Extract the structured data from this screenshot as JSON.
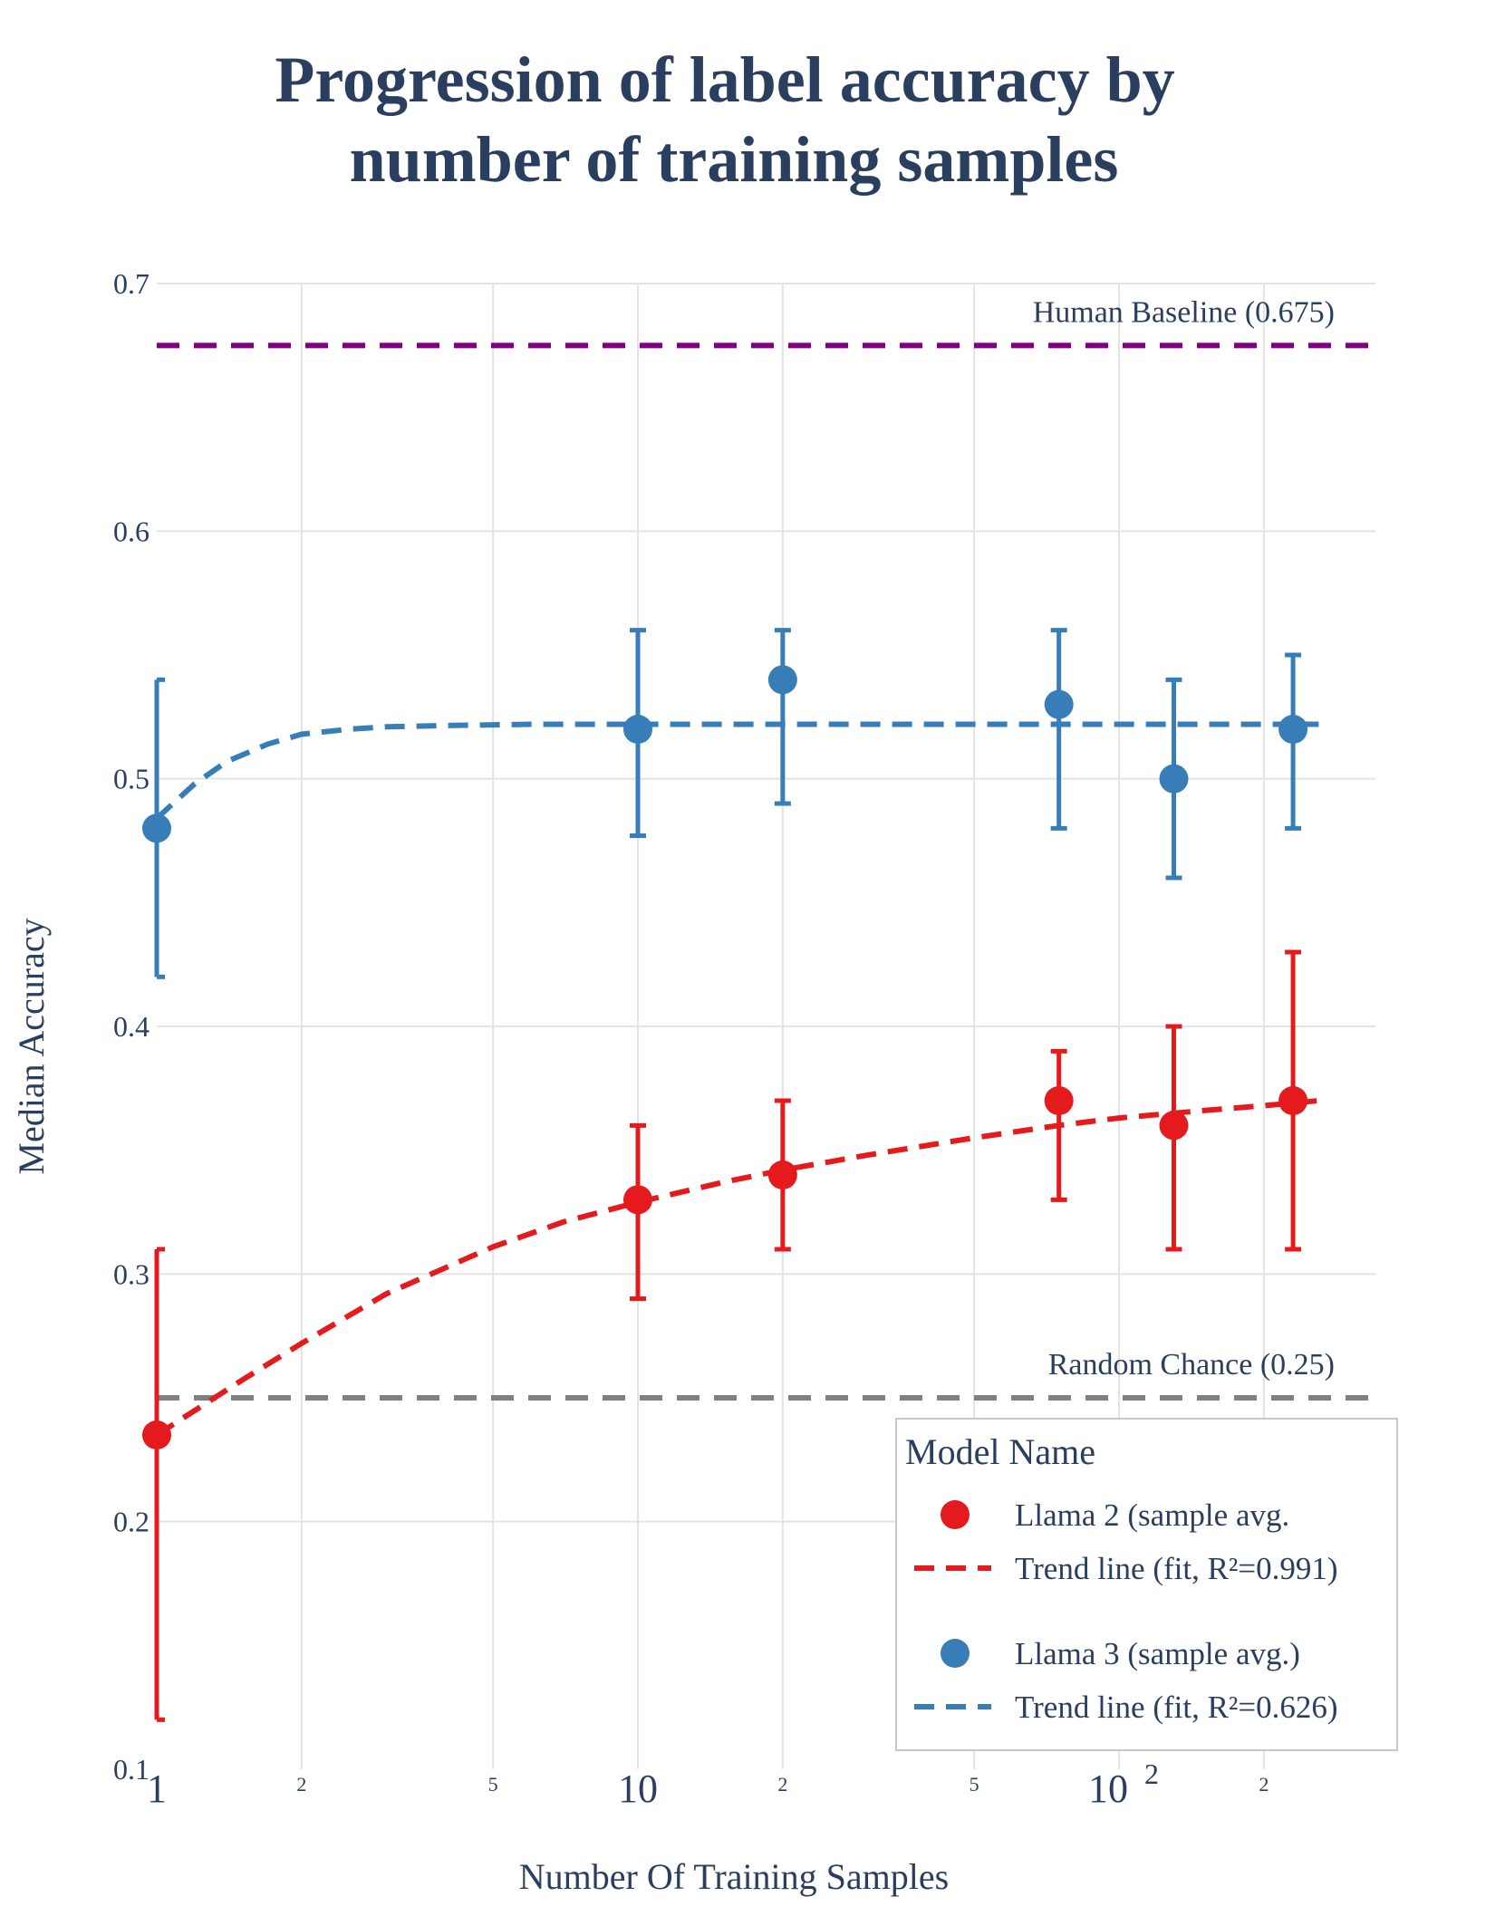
{
  "chart_data": {
    "type": "scatter",
    "title_line1": "Progression of label accuracy by",
    "title_line2": "number of training samples",
    "xlabel": "Number Of Training Samples",
    "ylabel": "Median Accuracy",
    "x_scale": "log",
    "xlim": [
      1,
      350
    ],
    "ylim": [
      0.1,
      0.7
    ],
    "y_ticks": [
      {
        "value": 0.1,
        "label": "0.1"
      },
      {
        "value": 0.2,
        "label": "0.2"
      },
      {
        "value": 0.3,
        "label": "0.3"
      },
      {
        "value": 0.4,
        "label": "0.4"
      },
      {
        "value": 0.5,
        "label": "0.5"
      },
      {
        "value": 0.6,
        "label": "0.6"
      },
      {
        "value": 0.7,
        "label": "0.7"
      }
    ],
    "x_major_ticks": [
      {
        "value": 1,
        "label": "1"
      },
      {
        "value": 10,
        "label": "10"
      },
      {
        "value": 100,
        "label": "10",
        "sup": "2"
      }
    ],
    "x_minor_ticks": [
      {
        "value": 2,
        "label": "2"
      },
      {
        "value": 5,
        "label": "5"
      },
      {
        "value": 20,
        "label": "2"
      },
      {
        "value": 50,
        "label": "5"
      },
      {
        "value": 200,
        "label": "2"
      }
    ],
    "reference_lines": [
      {
        "name": "human-baseline",
        "y": 0.675,
        "label": "Human Baseline (0.675)",
        "color": "#800080"
      },
      {
        "name": "random-chance",
        "y": 0.25,
        "label": "Random Chance (0.25)",
        "color": "#808080"
      }
    ],
    "series": [
      {
        "name": "Llama 2 (sample avg.",
        "key": "llama2",
        "color": "#e41a1c",
        "x": [
          1,
          10,
          20,
          75,
          130,
          230
        ],
        "y": [
          0.235,
          0.33,
          0.34,
          0.37,
          0.36,
          0.37
        ],
        "err_low": [
          0.12,
          0.29,
          0.31,
          0.33,
          0.31,
          0.31
        ],
        "err_high": [
          0.31,
          0.36,
          0.37,
          0.39,
          0.4,
          0.43
        ],
        "trend_label": "Trend line (fit, R²=0.991)",
        "trend_x": [
          1,
          1.5,
          2,
          3,
          5,
          7,
          10,
          15,
          20,
          30,
          50,
          75,
          100,
          150,
          200,
          260
        ],
        "trend_y": [
          0.235,
          0.257,
          0.272,
          0.292,
          0.311,
          0.321,
          0.329,
          0.337,
          0.342,
          0.348,
          0.355,
          0.36,
          0.363,
          0.366,
          0.368,
          0.37
        ]
      },
      {
        "name": "Llama 3 (sample avg.)",
        "key": "llama3",
        "color": "#377eb8",
        "x": [
          1,
          10,
          20,
          75,
          130,
          230
        ],
        "y": [
          0.48,
          0.52,
          0.54,
          0.53,
          0.5,
          0.52
        ],
        "err_low": [
          0.42,
          0.477,
          0.49,
          0.48,
          0.46,
          0.48
        ],
        "err_high": [
          0.54,
          0.56,
          0.56,
          0.56,
          0.54,
          0.55
        ],
        "trend_label": "Trend line (fit, R²=0.626)",
        "trend_x": [
          1,
          1.2,
          1.4,
          1.7,
          2,
          2.5,
          3,
          4,
          6,
          10,
          30,
          100,
          260
        ],
        "trend_y": [
          0.484,
          0.498,
          0.507,
          0.514,
          0.518,
          0.52,
          0.521,
          0.5215,
          0.522,
          0.522,
          0.522,
          0.522,
          0.522
        ]
      }
    ],
    "legend": {
      "title": "Model Name",
      "position": "bottom-right"
    }
  }
}
